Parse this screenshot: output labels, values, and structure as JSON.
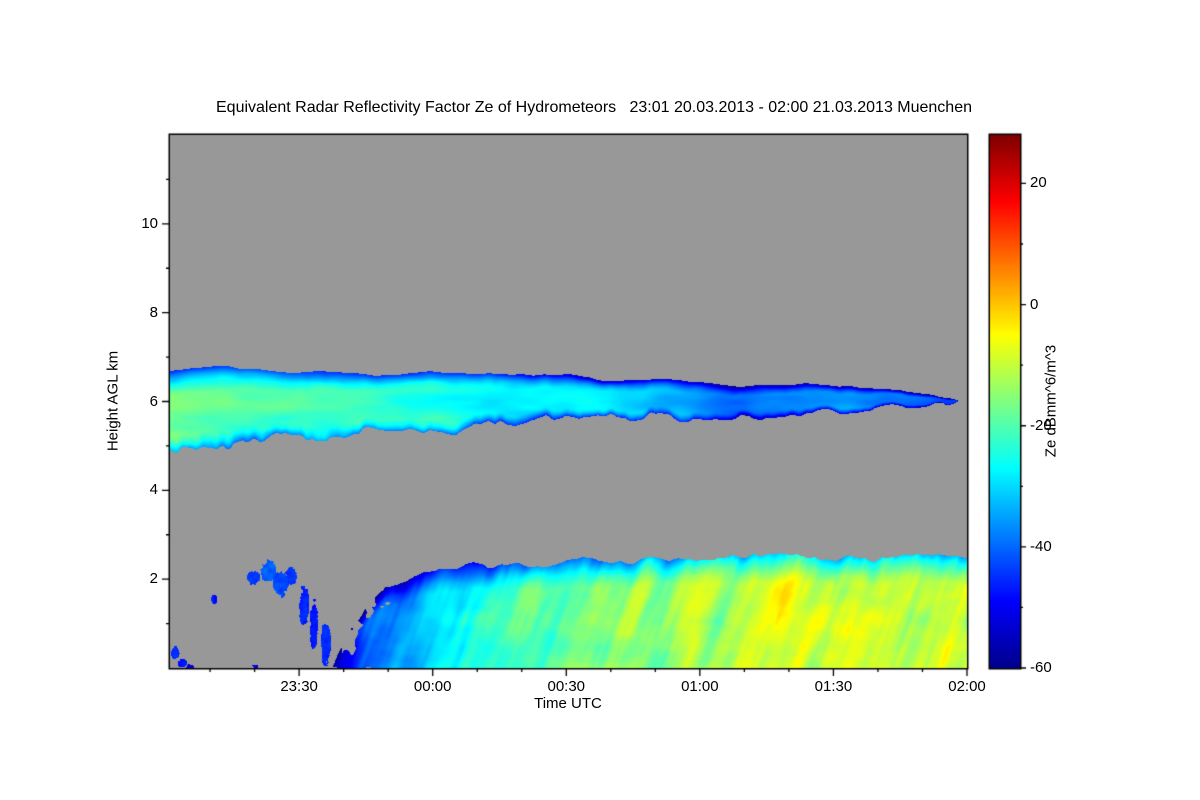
{
  "chart_data": {
    "type": "heatmap",
    "title": "Equivalent Radar Reflectivity Factor Ze of Hydrometeors   23:01 20.03.2013 - 02:00 21.03.2013 Muenchen",
    "xlabel": "Time UTC",
    "ylabel": "Height AGL km",
    "colorbar_label": "Ze dBmm^6/m^3",
    "xlim_minutes": [
      0,
      179
    ],
    "ylim": [
      0,
      12
    ],
    "value_range": [
      -60,
      28
    ],
    "background_color": "#989898",
    "x_ticks": [
      {
        "label": "23:30",
        "minute": 29
      },
      {
        "label": "00:00",
        "minute": 59
      },
      {
        "label": "00:30",
        "minute": 89
      },
      {
        "label": "01:00",
        "minute": 119
      },
      {
        "label": "01:30",
        "minute": 149
      },
      {
        "label": "02:00",
        "minute": 179
      }
    ],
    "x_minor_step_min": 10,
    "y_ticks": [
      {
        "label": "2",
        "km": 2
      },
      {
        "label": "4",
        "km": 4
      },
      {
        "label": "6",
        "km": 6
      },
      {
        "label": "8",
        "km": 8
      },
      {
        "label": "10",
        "km": 10
      }
    ],
    "y_minor_step_km": 1,
    "colorbar_ticks": [
      {
        "label": "20",
        "value": 20
      },
      {
        "label": "0",
        "value": 0
      },
      {
        "label": "-20",
        "value": -20
      },
      {
        "label": "-40",
        "value": -40
      },
      {
        "label": "-60",
        "value": -60
      }
    ],
    "cb_minor_step": 10,
    "jet_stops": [
      [
        0.0,
        0,
        0,
        140
      ],
      [
        0.125,
        0,
        0,
        255
      ],
      [
        0.375,
        0,
        255,
        255
      ],
      [
        0.625,
        255,
        255,
        0
      ],
      [
        0.875,
        255,
        0,
        0
      ],
      [
        1.0,
        128,
        0,
        0
      ]
    ],
    "layers": [
      {
        "name": "upper-cloud-layer",
        "t": [
          0,
          0.08,
          0.16,
          0.25,
          0.33,
          0.42,
          0.5,
          0.58,
          0.66,
          0.72,
          0.78,
          0.85,
          0.92,
          1.0
        ],
        "top_km": [
          6.7,
          6.75,
          6.7,
          6.65,
          6.62,
          6.6,
          6.55,
          6.5,
          6.45,
          6.35,
          6.32,
          6.35,
          6.3,
          6.05
        ],
        "base_km": [
          4.85,
          5.0,
          5.15,
          5.32,
          5.45,
          5.5,
          5.55,
          5.6,
          5.65,
          5.75,
          5.8,
          5.8,
          5.85,
          5.95
        ],
        "dbz": [
          -19,
          -20,
          -21,
          -22,
          -23,
          -26,
          -28,
          -30,
          -33,
          -39,
          -35,
          -33,
          -36,
          -42
        ]
      },
      {
        "name": "lower-precip-layer",
        "t": [
          0,
          0.2,
          0.23,
          0.27,
          0.32,
          0.38,
          0.45,
          0.52,
          0.6,
          0.68,
          0.75,
          0.82,
          0.88,
          0.94,
          1.0
        ],
        "top_km": [
          0,
          0,
          1.0,
          1.9,
          2.2,
          2.35,
          2.32,
          2.45,
          2.4,
          2.45,
          2.55,
          2.5,
          2.45,
          2.55,
          2.5
        ],
        "base_km": 0,
        "dbz": [
          -50,
          -48,
          -42,
          -37,
          -29,
          -25,
          -21,
          -17,
          -15,
          -13,
          -10,
          -8,
          -11,
          -10,
          -12
        ]
      }
    ],
    "specks": [
      {
        "t": 0.006,
        "h": 0.35,
        "rt": 0.005,
        "rh": 0.14,
        "dbz": -45
      },
      {
        "t": 0.015,
        "h": 0.12,
        "rt": 0.006,
        "rh": 0.1,
        "dbz": -48
      },
      {
        "t": 0.055,
        "h": 1.55,
        "rt": 0.004,
        "rh": 0.1,
        "dbz": -47
      },
      {
        "t": 0.105,
        "h": 2.05,
        "rt": 0.008,
        "rh": 0.16,
        "dbz": -44
      },
      {
        "t": 0.123,
        "h": 2.18,
        "rt": 0.01,
        "rh": 0.22,
        "dbz": -41
      },
      {
        "t": 0.138,
        "h": 1.92,
        "rt": 0.009,
        "rh": 0.3,
        "dbz": -43
      },
      {
        "t": 0.152,
        "h": 2.08,
        "rt": 0.007,
        "rh": 0.2,
        "dbz": -45
      },
      {
        "t": 0.168,
        "h": 1.4,
        "rt": 0.006,
        "rh": 0.45,
        "dbz": -46
      },
      {
        "t": 0.18,
        "h": 0.95,
        "rt": 0.005,
        "rh": 0.55,
        "dbz": -47
      },
      {
        "t": 0.195,
        "h": 0.55,
        "rt": 0.006,
        "rh": 0.5,
        "dbz": -45
      }
    ]
  }
}
